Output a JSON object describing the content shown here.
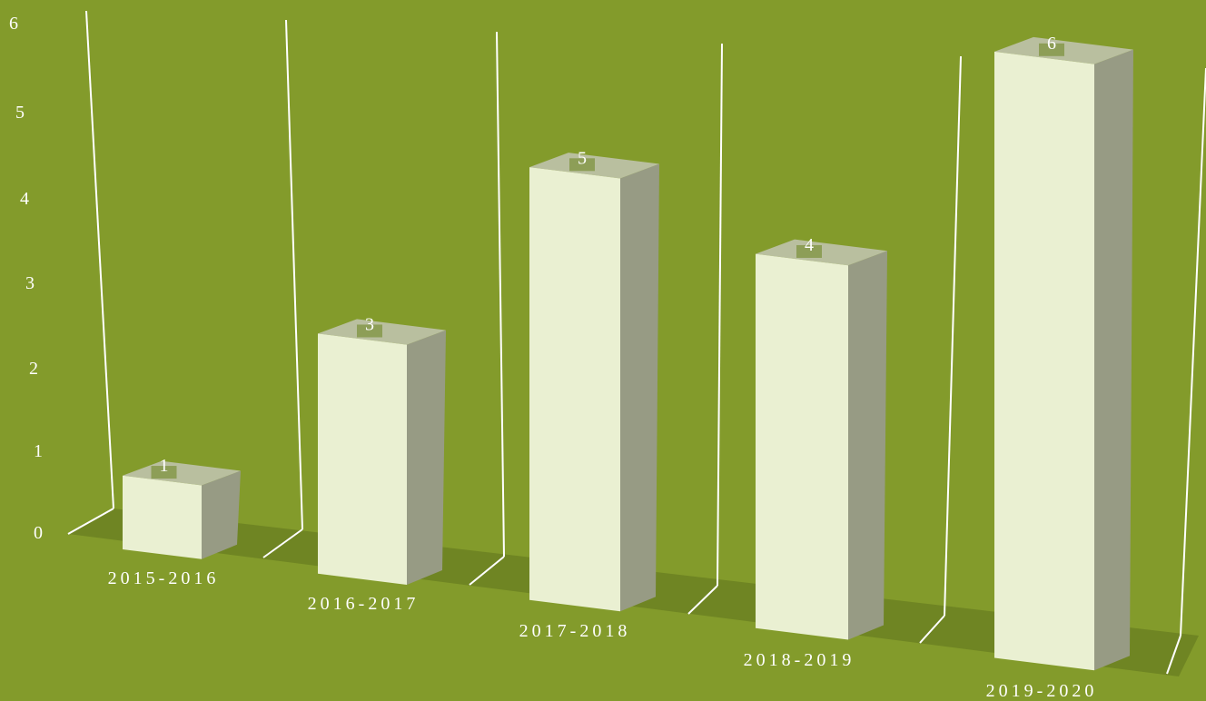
{
  "chart_data": {
    "type": "bar",
    "title": "",
    "xlabel": "",
    "ylabel": "",
    "categories": [
      "2015-2016",
      "2016-2017",
      "2017-2018",
      "2018-2019",
      "2019-2020"
    ],
    "values": [
      1,
      3,
      5,
      4,
      6
    ],
    "y_ticks": [
      "0",
      "1",
      "2",
      "3",
      "4",
      "5",
      "6"
    ],
    "ylim": [
      0,
      6
    ],
    "grid": "vertical divider lines between categories",
    "legend": "none",
    "data_labels": true,
    "style": "3d"
  },
  "colors": {
    "background": "#839b2b",
    "floor": "#6f8523",
    "bar_front": "#eaf0d2",
    "bar_side": "#979b84",
    "bar_top": "#b9bf9f",
    "label_tab": "#8d9e57",
    "text": "#ffffff",
    "grid_line": "#ffffff"
  }
}
